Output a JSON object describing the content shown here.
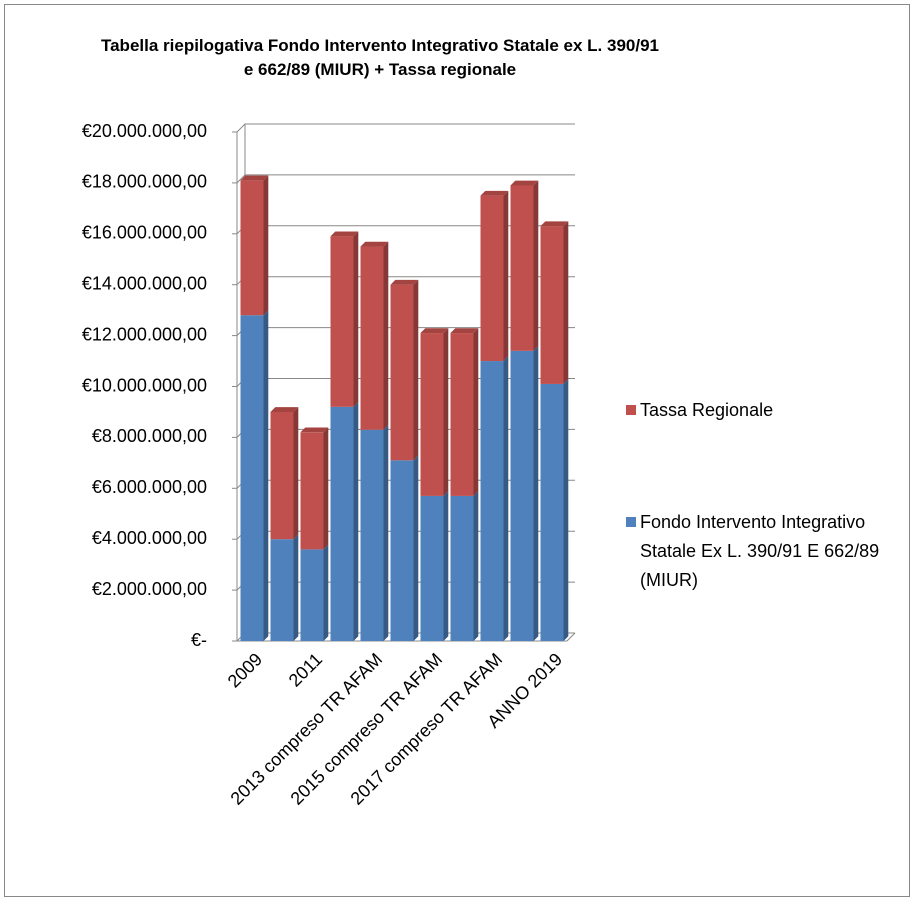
{
  "chart_data": {
    "type": "bar",
    "stacked": true,
    "title": "Tabella riepilogativa Fondo Intervento Integrativo Statale ex L. 390/91 e 662/89 (MIUR) + Tassa regionale",
    "categories": [
      "2009",
      null,
      "2011",
      null,
      "2013 compreso TR AFAM",
      null,
      "2015 compreso TR AFAM",
      null,
      "2017 compreso TR AFAM",
      null,
      "ANNO 2019"
    ],
    "series": [
      {
        "name": "Fondo Intervento Integrativo Statale Ex L. 390/91 E 662/89 (MIUR)",
        "color": "#4f81bd",
        "values": [
          12800000,
          4000000,
          3600000,
          9200000,
          8300000,
          7100000,
          5700000,
          5700000,
          11000000,
          11400000,
          10100000
        ]
      },
      {
        "name": "Tassa Regionale",
        "color": "#c0504d",
        "values": [
          5300000,
          5000000,
          4600000,
          6700000,
          7200000,
          6900000,
          6400000,
          6400000,
          6500000,
          6500000,
          6200000
        ]
      }
    ],
    "ylim": [
      0,
      20000000
    ],
    "yticks": [
      {
        "value": 0,
        "label": "€-"
      },
      {
        "value": 2000000,
        "label": "€2.000.000,00"
      },
      {
        "value": 4000000,
        "label": "€4.000.000,00"
      },
      {
        "value": 6000000,
        "label": "€6.000.000,00"
      },
      {
        "value": 8000000,
        "label": "€8.000.000,00"
      },
      {
        "value": 10000000,
        "label": "€10.000.000,00"
      },
      {
        "value": 12000000,
        "label": "€12.000.000,00"
      },
      {
        "value": 14000000,
        "label": "€14.000.000,00"
      },
      {
        "value": 16000000,
        "label": "€16.000.000,00"
      },
      {
        "value": 18000000,
        "label": "€18.000.000,00"
      },
      {
        "value": 20000000,
        "label": "€20.000.000,00"
      }
    ],
    "grid": true,
    "legend": "right"
  }
}
